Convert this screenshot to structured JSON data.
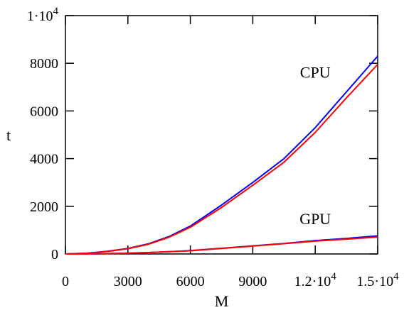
{
  "chart_data": {
    "type": "line",
    "xlabel": "M",
    "ylabel": "t",
    "xlim": [
      0,
      15000
    ],
    "ylim": [
      0,
      10000
    ],
    "grid": false,
    "x_ticks": [
      {
        "value": 0,
        "label": "0"
      },
      {
        "value": 3000,
        "label": "3000"
      },
      {
        "value": 6000,
        "label": "6000"
      },
      {
        "value": 9000,
        "label": "9000"
      },
      {
        "value": 12000,
        "mantissa": "1.2",
        "base": "·10",
        "exp": "4"
      },
      {
        "value": 15000,
        "mantissa": "1.5",
        "base": "·10",
        "exp": "4"
      }
    ],
    "y_ticks": [
      {
        "value": 0,
        "label": "0"
      },
      {
        "value": 2000,
        "label": "2000"
      },
      {
        "value": 4000,
        "label": "4000"
      },
      {
        "value": 6000,
        "label": "6000"
      },
      {
        "value": 8000,
        "label": "8000"
      },
      {
        "value": 10000,
        "mantissa": "1",
        "base": "·10",
        "exp": "4"
      }
    ],
    "annotations": [
      {
        "text": "CPU",
        "x": 12000,
        "y": 7400
      },
      {
        "text": "GPU",
        "x": 12000,
        "y": 1250
      }
    ],
    "series": [
      {
        "color": "#0000ff",
        "x": [
          0,
          1000,
          2000,
          3000,
          4000,
          5000,
          6000,
          7500,
          9000,
          10500,
          12000,
          13500,
          15000
        ],
        "y": [
          0,
          30,
          110,
          230,
          430,
          740,
          1170,
          2050,
          3000,
          4000,
          5300,
          6800,
          8300
        ]
      },
      {
        "color": "#ff0000",
        "x": [
          0,
          1000,
          2000,
          3000,
          4000,
          5000,
          6000,
          7500,
          9000,
          10500,
          12000,
          13500,
          15000
        ],
        "y": [
          0,
          28,
          105,
          220,
          410,
          710,
          1120,
          1950,
          2880,
          3850,
          5100,
          6550,
          7950
        ]
      },
      {
        "color": "#0000ff",
        "x": [
          0,
          1000,
          2000,
          3000,
          4000,
          5000,
          6000,
          7500,
          9000,
          10500,
          12000,
          13500,
          15000
        ],
        "y": [
          0,
          5,
          15,
          35,
          60,
          95,
          140,
          240,
          340,
          440,
          560,
          650,
          760
        ]
      },
      {
        "color": "#ff0000",
        "x": [
          0,
          1000,
          2000,
          3000,
          4000,
          5000,
          6000,
          7500,
          9000,
          10500,
          12000,
          13500,
          15000
        ],
        "y": [
          0,
          5,
          15,
          35,
          60,
          95,
          135,
          230,
          330,
          430,
          540,
          620,
          710
        ]
      }
    ]
  }
}
